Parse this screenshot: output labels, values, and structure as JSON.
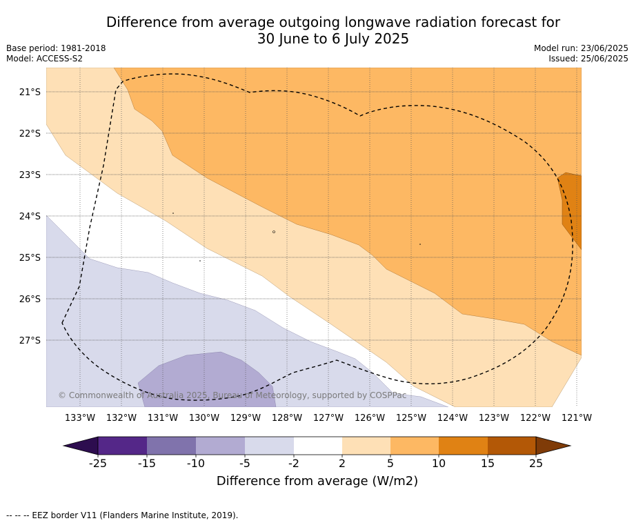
{
  "title_line1": "Difference from average outgoing longwave radiation forecast for",
  "title_line2": "30 June to 6 July 2025",
  "base_period": "Base period: 1981-2018",
  "model": "Model: ACCESS-S2",
  "model_run": "Model run: 23/06/2025",
  "issued": "Issued: 25/06/2025",
  "copyright": "© Commonwealth of Australia 2025, Bureau of Meteorology, supported by COSPPac",
  "footer": "-- -- -- EEZ border V11 (Flanders Marine Institute, 2019).",
  "lat_labels": [
    "21°S",
    "22°S",
    "23°S",
    "24°S",
    "25°S",
    "26°S",
    "27°S"
  ],
  "lon_labels": [
    "133°W",
    "132°W",
    "131°W",
    "130°W",
    "129°W",
    "128°W",
    "127°W",
    "126°W",
    "125°W",
    "124°W",
    "123°W",
    "122°W",
    "121°W"
  ],
  "colorbar": {
    "title": "Difference from average (W/m2)",
    "ticks": [
      "-25",
      "-15",
      "-10",
      "-5",
      "-2",
      "2",
      "5",
      "10",
      "15",
      "25"
    ],
    "colors": {
      "below_-25": "#2d0d4f",
      "-25_-15": "#542788",
      "-15_-10": "#8073ac",
      "-10_-5": "#b2abd2",
      "-5_-2": "#d8daeb",
      "-2_2": "#ffffff",
      "2_5": "#fee0b6",
      "5_10": "#fdb863",
      "10_15": "#e08214",
      "15_25": "#b35806",
      "above_25": "#7f3b08"
    }
  },
  "map_extent": {
    "lon_min": -133.8,
    "lon_max": -120.9,
    "lat_min": -28.6,
    "lat_max": -20.4
  }
}
